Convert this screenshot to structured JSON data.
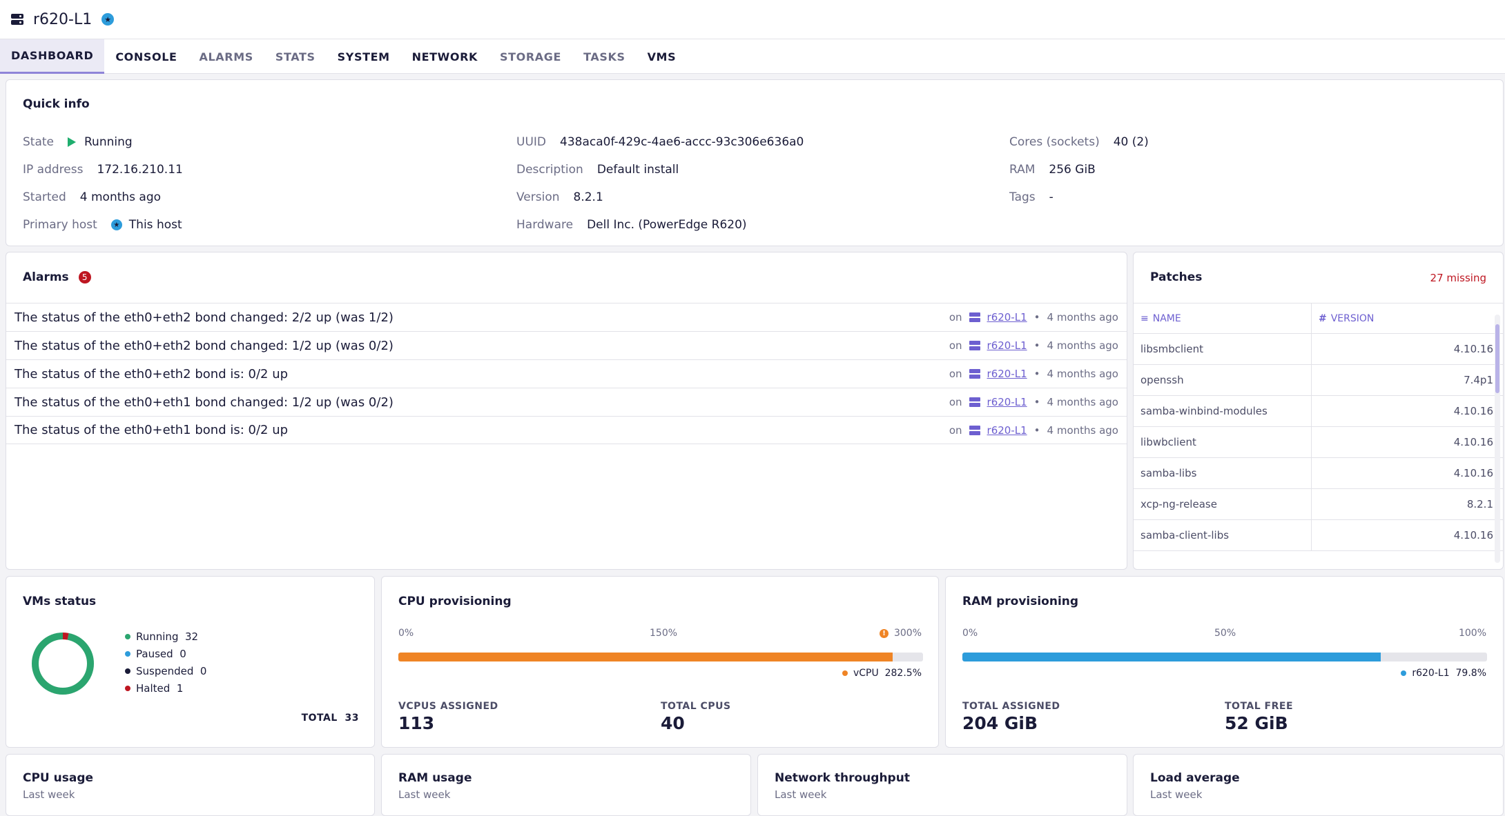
{
  "header": {
    "title": "r620-L1",
    "host_icon": "host-server-icon",
    "pool_master_icon": "star-icon"
  },
  "tabs": [
    {
      "label": "DASHBOARD",
      "active": true
    },
    {
      "label": "CONSOLE"
    },
    {
      "label": "ALARMS"
    },
    {
      "label": "STATS"
    },
    {
      "label": "SYSTEM"
    },
    {
      "label": "NETWORK"
    },
    {
      "label": "STORAGE"
    },
    {
      "label": "TASKS"
    },
    {
      "label": "VMS"
    }
  ],
  "quick_info": {
    "title": "Quick info",
    "state_label": "State",
    "state_value": "Running",
    "ip_label": "IP address",
    "ip_value": "172.16.210.11",
    "started_label": "Started",
    "started_value": "4 months ago",
    "primary_label": "Primary host",
    "primary_value": "This host",
    "uuid_label": "UUID",
    "uuid_value": "438aca0f-429c-4ae6-accc-93c306e636a0",
    "description_label": "Description",
    "description_value": "Default install",
    "version_label": "Version",
    "version_value": "8.2.1",
    "hardware_label": "Hardware",
    "hardware_value": "Dell Inc. (PowerEdge R620)",
    "cores_label": "Cores (sockets)",
    "cores_value": "40 (2)",
    "ram_label": "RAM",
    "ram_value": "256 GiB",
    "tags_label": "Tags",
    "tags_value": "-"
  },
  "alarms": {
    "title": "Alarms",
    "count": "5",
    "items": [
      {
        "text": "The status of the eth0+eth2 bond changed: 2/2 up (was 1/2)",
        "on": "on",
        "host": "r620-L1",
        "sep": "•",
        "time": "4 months ago"
      },
      {
        "text": "The status of the eth0+eth2 bond changed: 1/2 up (was 0/2)",
        "on": "on",
        "host": "r620-L1",
        "sep": "•",
        "time": "4 months ago"
      },
      {
        "text": "The status of the eth0+eth2 bond is: 0/2 up",
        "on": "on",
        "host": "r620-L1",
        "sep": "•",
        "time": "4 months ago"
      },
      {
        "text": "The status of the eth0+eth1 bond changed: 1/2 up (was 0/2)",
        "on": "on",
        "host": "r620-L1",
        "sep": "•",
        "time": "4 months ago"
      },
      {
        "text": "The status of the eth0+eth1 bond is: 0/2 up",
        "on": "on",
        "host": "r620-L1",
        "sep": "•",
        "time": "4 months ago"
      }
    ]
  },
  "patches": {
    "title": "Patches",
    "missing": "27 missing",
    "col_name": "NAME",
    "col_version": "VERSION",
    "rows": [
      {
        "name": "libsmbclient",
        "version": "4.10.16"
      },
      {
        "name": "openssh",
        "version": "7.4p1"
      },
      {
        "name": "samba-winbind-modules",
        "version": "4.10.16"
      },
      {
        "name": "libwbclient",
        "version": "4.10.16"
      },
      {
        "name": "samba-libs",
        "version": "4.10.16"
      },
      {
        "name": "xcp-ng-release",
        "version": "8.2.1"
      },
      {
        "name": "samba-client-libs",
        "version": "4.10.16"
      }
    ]
  },
  "vms_status": {
    "title": "VMs status",
    "running_label": "Running",
    "running": 32,
    "paused_label": "Paused",
    "paused": 0,
    "suspended_label": "Suspended",
    "suspended": 0,
    "halted_label": "Halted",
    "halted": 1,
    "total_label": "TOTAL",
    "total": 33,
    "colors": {
      "running": "#2ba56f",
      "paused": "#2d9cdb",
      "suspended": "#1a1b38",
      "halted": "#be1621"
    }
  },
  "cpu_provisioning": {
    "title": "CPU provisioning",
    "scale": [
      "0%",
      "150%",
      "300%"
    ],
    "warning_icon": "warning-icon",
    "percent": 282.5,
    "max": 300,
    "legend_label": "vCPU",
    "legend_value": "282.5%",
    "color": "#ef8425",
    "assigned_label": "VCPUS ASSIGNED",
    "assigned": "113",
    "total_label": "TOTAL CPUS",
    "total": "40"
  },
  "ram_provisioning": {
    "title": "RAM provisioning",
    "scale": [
      "0%",
      "50%",
      "100%"
    ],
    "percent": 79.8,
    "max": 100,
    "legend_label": "r620-L1",
    "legend_value": "79.8%",
    "color": "#2d9cdb",
    "assigned_label": "TOTAL ASSIGNED",
    "assigned": "204 GiB",
    "free_label": "TOTAL FREE",
    "free": "52 GiB"
  },
  "bottom_cards": [
    {
      "title": "CPU usage",
      "subtitle": "Last week"
    },
    {
      "title": "RAM usage",
      "subtitle": "Last week"
    },
    {
      "title": "Network throughput",
      "subtitle": "Last week"
    },
    {
      "title": "Load average",
      "subtitle": "Last week"
    }
  ]
}
